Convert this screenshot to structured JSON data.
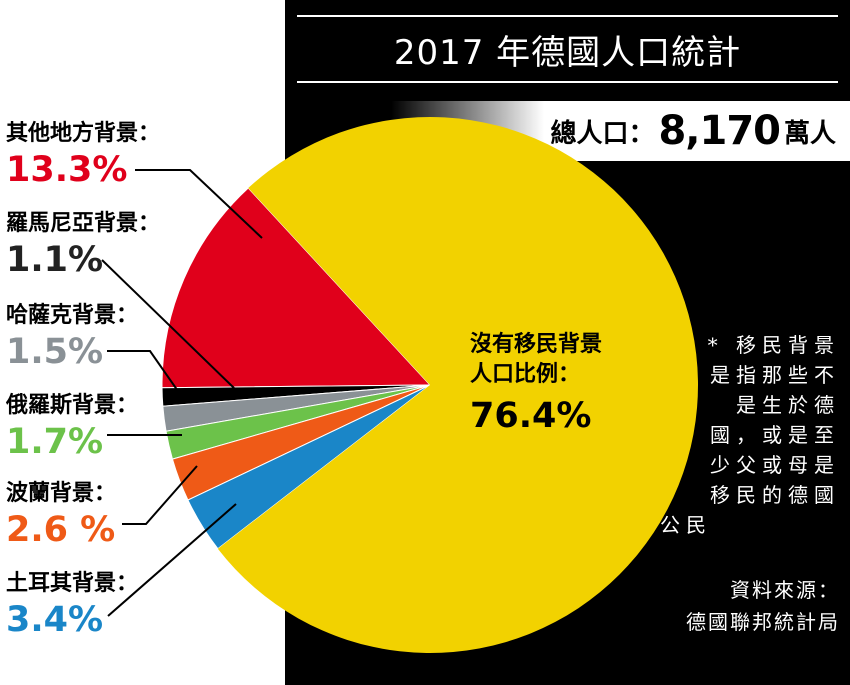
{
  "title": "2017 年德國人口統計",
  "total": {
    "label": "總人口：",
    "value": "8,170",
    "unit": "萬人"
  },
  "chart_data": {
    "type": "pie",
    "slices": [
      {
        "label": "其他地方背景：",
        "value": 13.3,
        "display": "13.3%",
        "color": "#e0001b"
      },
      {
        "label": "羅馬尼亞背景：",
        "value": 1.1,
        "display": "1.1%",
        "color": "#000000"
      },
      {
        "label": "哈薩克背景：",
        "value": 1.5,
        "display": "1.5%",
        "color": "#8a9196"
      },
      {
        "label": "俄羅斯背景：",
        "value": 1.7,
        "display": "1.7%",
        "color": "#6cc24a"
      },
      {
        "label": "波蘭背景：",
        "value": 2.6,
        "display": "2.6 %",
        "color": "#ef5a17"
      },
      {
        "label": "土耳其背景：",
        "value": 3.4,
        "display": "3.4%",
        "color": "#1a86c8"
      },
      {
        "label": "沒有移民背景人口比例：",
        "label_line1": "沒有移民背景",
        "label_line2": "人口比例：",
        "value": 76.4,
        "display": "76.4%",
        "color": "#f2d200"
      }
    ],
    "label_colors": [
      "#e0001b",
      "#222222",
      "#8a9196",
      "#6cc24a",
      "#ef5a17",
      "#1a86c8",
      "#000000"
    ]
  },
  "note": [
    "* 移民背景",
    "是指那些不",
    "是生於德",
    "國，或是至",
    "少父或母是",
    "移民的德國",
    "公民"
  ],
  "source": [
    "資料來源：",
    "德國聯邦統計局"
  ]
}
